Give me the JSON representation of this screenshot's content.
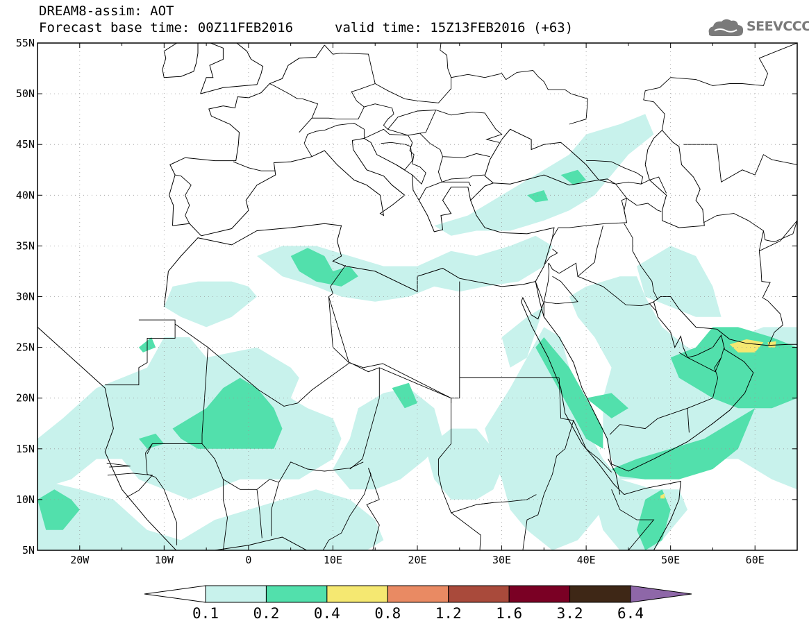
{
  "header": {
    "title_line1": "DREAM8-assim: AOT",
    "title_line2": "Forecast base time: 00Z11FEB2016",
    "valid_time": "valid time: 15Z13FEB2016 (+63)",
    "logo_text": "SEEVCCC"
  },
  "map": {
    "lon_range": [
      -25,
      65
    ],
    "lat_range": [
      5,
      55
    ],
    "lon_ticks": [
      {
        "value": -20,
        "label": "20W"
      },
      {
        "value": -10,
        "label": "10W"
      },
      {
        "value": 0,
        "label": "0"
      },
      {
        "value": 10,
        "label": "10E"
      },
      {
        "value": 20,
        "label": "20E"
      },
      {
        "value": 30,
        "label": "30E"
      },
      {
        "value": 40,
        "label": "40E"
      },
      {
        "value": 50,
        "label": "50E"
      },
      {
        "value": 60,
        "label": "60E"
      }
    ],
    "lat_ticks": [
      {
        "value": 55,
        "label": "55N"
      },
      {
        "value": 50,
        "label": "50N"
      },
      {
        "value": 45,
        "label": "45N"
      },
      {
        "value": 40,
        "label": "40N"
      },
      {
        "value": 35,
        "label": "35N"
      },
      {
        "value": 30,
        "label": "30N"
      },
      {
        "value": 25,
        "label": "25N"
      },
      {
        "value": 20,
        "label": "20N"
      },
      {
        "value": 15,
        "label": "15N"
      },
      {
        "value": 10,
        "label": "10N"
      },
      {
        "value": 5,
        "label": "5N"
      }
    ],
    "grid": "dotted",
    "colors": {
      "c01": "#c8f2ec",
      "c02": "#52e0ac",
      "c04": "#f5e871"
    }
  },
  "colorbar": {
    "colors": [
      "#c8f2ec",
      "#52e0ac",
      "#f5e871",
      "#e98a63",
      "#a94a3b",
      "#7a0024",
      "#3e2716",
      "#8e67a8"
    ],
    "labels": [
      "0.1",
      "0.2",
      "0.4",
      "0.8",
      "1.2",
      "1.6",
      "3.2",
      "6.4"
    ]
  }
}
